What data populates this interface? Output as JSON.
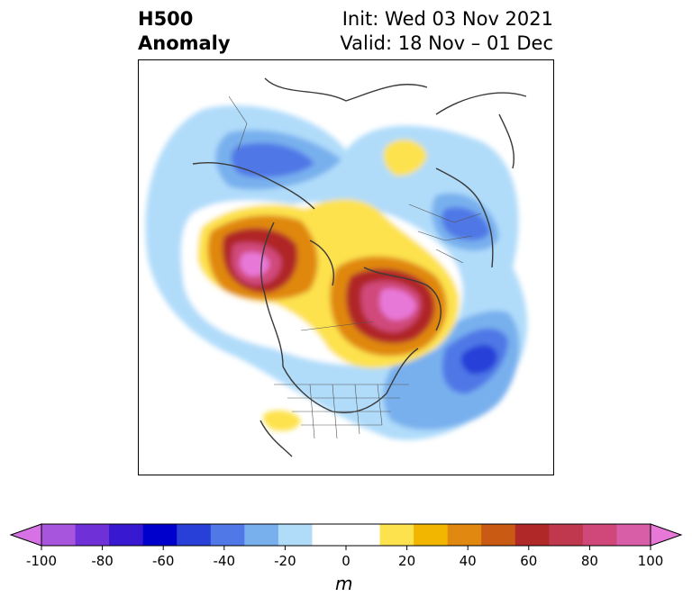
{
  "title": {
    "left_line1": "H500",
    "left_line2": "Anomaly",
    "right_line1": "Init: Wed 03 Nov 2021",
    "right_line2": "Valid: 18 Nov – 01 Dec"
  },
  "colorbar": {
    "ticks": [
      "-100",
      "-80",
      "-60",
      "-40",
      "-20",
      "0",
      "20",
      "40",
      "60",
      "80",
      "100"
    ],
    "unit": "m",
    "colors": [
      "#d672e6",
      "#a855de",
      "#7030d8",
      "#3818d0",
      "#0000cc",
      "#2840d8",
      "#5078e6",
      "#78b0ee",
      "#b0dcfa",
      "#ffffff",
      "#ffffff",
      "#fde24e",
      "#f2b600",
      "#e08810",
      "#c85a14",
      "#b02828",
      "#c0384e",
      "#d0487a",
      "#d85ea8",
      "#e878d8"
    ]
  },
  "colors": {
    "land_border": "#3a3a3a",
    "political_border": "#555555"
  }
}
